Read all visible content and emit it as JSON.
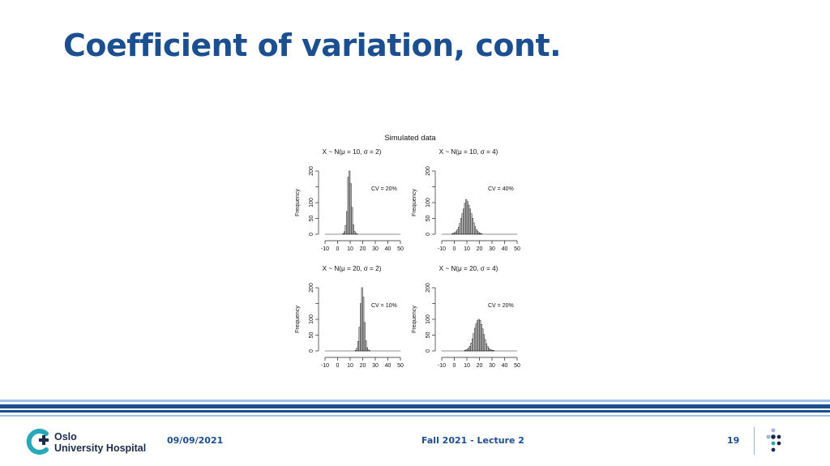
{
  "slide": {
    "title": "Coefficient of variation, cont.",
    "footer": {
      "date": "09/09/2021",
      "course": "Fall 2021 - Lecture 2",
      "page": "19",
      "logo_line1": "Oslo",
      "logo_line2": "University Hospital"
    },
    "colors": {
      "title": "#1b4f8f",
      "stripe_dark": "#1b4f8f",
      "stripe_light": "#9fc3e6",
      "logo_teal": "#27a8b8",
      "logo_navy": "#1b2b4a"
    }
  },
  "chart_data": {
    "title": "Simulated data",
    "panels": [
      {
        "type": "bar",
        "subtitle": "X ~ N(μ = 10, σ = 2)",
        "annotation": "CV = 20%",
        "ylabel": "Frequency",
        "xlim": [
          -10,
          50
        ],
        "ylim": [
          0,
          200
        ],
        "xticks": [
          "-10",
          "0",
          "10",
          "20",
          "30",
          "40",
          "50"
        ],
        "yticks": [
          "0",
          "50",
          "100",
          "150",
          "200"
        ],
        "bin_start": 4,
        "bin_width": 1,
        "values": [
          2,
          8,
          28,
          72,
          180,
          200,
          160,
          85,
          30,
          9,
          3,
          1
        ]
      },
      {
        "type": "bar",
        "subtitle": "X ~ N(μ = 10, σ = 4)",
        "annotation": "CV = 40%",
        "ylabel": "Frequency",
        "xlim": [
          -10,
          50
        ],
        "ylim": [
          0,
          200
        ],
        "xticks": [
          "-10",
          "0",
          "10",
          "20",
          "30",
          "40",
          "50"
        ],
        "yticks": [
          "0",
          "50",
          "100",
          "150",
          "200"
        ],
        "bin_start": -2,
        "bin_width": 1,
        "values": [
          2,
          3,
          5,
          8,
          14,
          22,
          34,
          50,
          65,
          80,
          98,
          110,
          103,
          92,
          80,
          65,
          50,
          36,
          24,
          15,
          9,
          5,
          3,
          2
        ]
      },
      {
        "type": "bar",
        "subtitle": "X ~ N(μ = 20, σ = 2)",
        "annotation": "CV = 10%",
        "ylabel": "Frequency",
        "xlim": [
          -10,
          50
        ],
        "ylim": [
          0,
          200
        ],
        "xticks": [
          "-10",
          "0",
          "10",
          "20",
          "30",
          "40",
          "50"
        ],
        "yticks": [
          "0",
          "50",
          "100",
          "150",
          "200"
        ],
        "bin_start": 14,
        "bin_width": 1,
        "values": [
          2,
          9,
          30,
          75,
          150,
          200,
          170,
          90,
          32,
          10,
          3,
          1
        ]
      },
      {
        "type": "bar",
        "subtitle": "X ~ N(μ = 20, σ = 4)",
        "annotation": "CV = 20%",
        "ylabel": "Frequency",
        "xlim": [
          -10,
          50
        ],
        "ylim": [
          0,
          200
        ],
        "xticks": [
          "-10",
          "0",
          "10",
          "20",
          "30",
          "40",
          "50"
        ],
        "yticks": [
          "0",
          "50",
          "100",
          "150",
          "200"
        ],
        "bin_start": 8,
        "bin_width": 1,
        "values": [
          2,
          3,
          5,
          9,
          15,
          25,
          38,
          55,
          72,
          86,
          96,
          100,
          97,
          84,
          70,
          52,
          36,
          23,
          14,
          8,
          4,
          3,
          2,
          1
        ]
      }
    ]
  }
}
